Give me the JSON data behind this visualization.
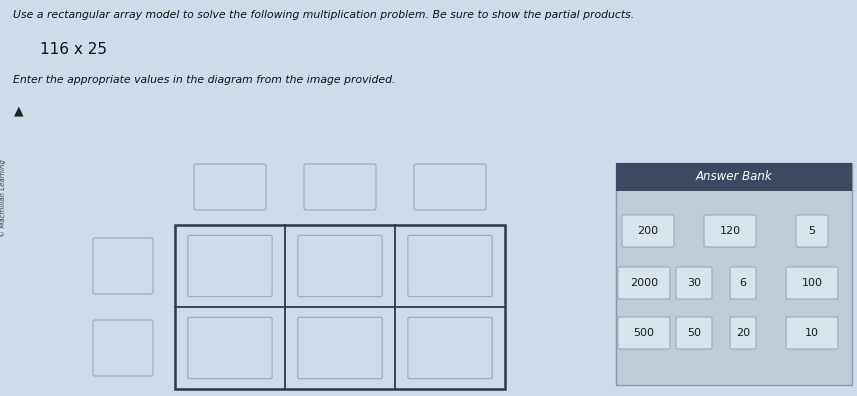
{
  "title_line1": "Use a rectangular array model to solve the following multiplication problem. Be sure to show the partial products.",
  "title_line2": "116 x 25",
  "title_line3": "Enter the appropriate values in the diagram from the image provided.",
  "bg_color": "#cddce8",
  "grid_border_color": "#2a3a50",
  "box_border_color": "#9aaabb",
  "box_bg_color": "#cddce8",
  "answer_bank_header_bg": "#3a4a62",
  "answer_bank_body_bg": "#bccdd8",
  "answer_bank_btn_bg": "#d8e4ec",
  "answer_bank_title": "Answer Bank",
  "answer_bank_rows": [
    [
      "200",
      "120",
      "5"
    ],
    [
      "2000",
      "30",
      "6",
      "100"
    ],
    [
      "500",
      "50",
      "20",
      "10"
    ]
  ],
  "macmillan_text": "© Macmillan Learning",
  "cursor_symbol": "▲"
}
